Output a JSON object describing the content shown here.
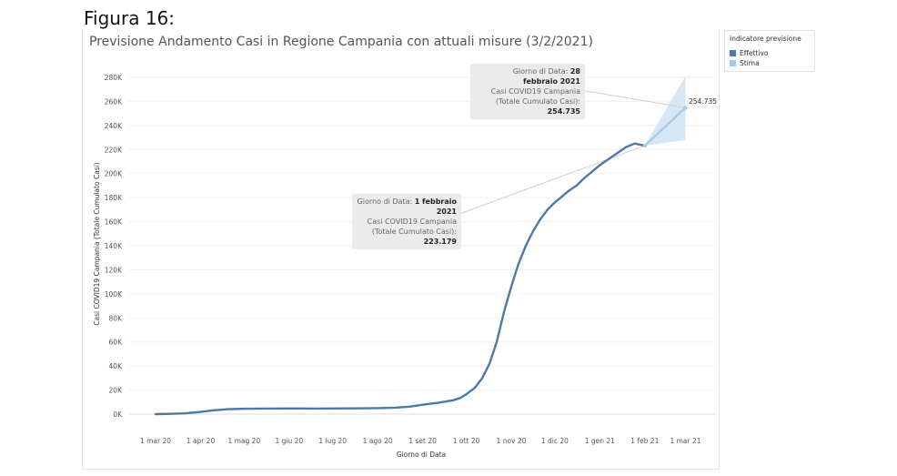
{
  "figure_label": "Figura 16:",
  "chart_data": {
    "type": "line",
    "title": "Previsione Andamento Casi in Regione Campania con attuali misure (3/2/2021)",
    "xlabel": "Giorno di Data",
    "ylabel": "Casi COVID19 Campania (Totale Cumulato Casi)",
    "ylim": [
      0,
      280000
    ],
    "yticks": [
      0,
      20000,
      40000,
      60000,
      80000,
      100000,
      120000,
      140000,
      160000,
      180000,
      200000,
      220000,
      240000,
      260000,
      280000
    ],
    "ytick_labels": [
      "0K",
      "20K",
      "40K",
      "60K",
      "80K",
      "100K",
      "120K",
      "140K",
      "160K",
      "180K",
      "200K",
      "220K",
      "240K",
      "260K",
      "280K"
    ],
    "xlim_days": [
      -6,
      372
    ],
    "xticks_days": [
      0,
      31,
      61,
      92,
      122,
      153,
      184,
      214,
      245,
      275,
      306,
      337,
      365
    ],
    "xtick_labels": [
      "1 mar 20",
      "1 apr 20",
      "1 mag 20",
      "1 giu 20",
      "1 lug 20",
      "1 ago 20",
      "1 set 20",
      "1 ott 20",
      "1 nov 20",
      "1 dic 20",
      "1 gen 21",
      "1 feb 21",
      "1 mar 21"
    ],
    "x_unit": "days since 1 mar 2020",
    "series": [
      {
        "name": "Effettivo",
        "color": "#4e79a7",
        "x": [
          0,
          10,
          20,
          31,
          40,
          50,
          61,
          75,
          92,
          100,
          110,
          122,
          135,
          153,
          165,
          175,
          184,
          195,
          205,
          210,
          214,
          220,
          225,
          230,
          235,
          240,
          245,
          250,
          255,
          260,
          265,
          270,
          275,
          280,
          285,
          290,
          295,
          300,
          306,
          312,
          318,
          324,
          330,
          337
        ],
        "y": [
          0,
          200,
          600,
          1800,
          3200,
          4100,
          4500,
          4600,
          4700,
          4700,
          4650,
          4700,
          4800,
          5000,
          5400,
          6200,
          7800,
          9500,
          11500,
          13500,
          16500,
          22000,
          30000,
          42000,
          60000,
          85000,
          106000,
          125000,
          140000,
          152000,
          162000,
          170000,
          176000,
          181000,
          186000,
          190000,
          196000,
          201000,
          207000,
          212000,
          217000,
          222000,
          225000,
          223179
        ]
      },
      {
        "name": "Stima",
        "color": "#a0cbe8",
        "x": [
          337,
          365
        ],
        "y": [
          223179,
          254735
        ],
        "band_upper": [
          223179,
          281000
        ],
        "band_lower": [
          223179,
          228000
        ]
      }
    ],
    "legend": {
      "title": "Indicatore previsione",
      "items": [
        "Effettivo",
        "Stima"
      ],
      "position": "top-right"
    },
    "end_label": "254.735",
    "tooltips": [
      {
        "line1_prefix": "Giorno di Data: ",
        "line1_value": "28",
        "line2_value": "febbraio 2021",
        "line3": "Casi COVID19 Campania",
        "line4": "(Totale Cumulato Casi):",
        "line5_value": "254.735"
      },
      {
        "line1_prefix": "Giorno di Data: ",
        "line1_value": "1 febbraio",
        "line2_value": "2021",
        "line3": "Casi COVID19 Campania",
        "line4": "(Totale Cumulato Casi):",
        "line5_value": "223.179"
      }
    ]
  }
}
